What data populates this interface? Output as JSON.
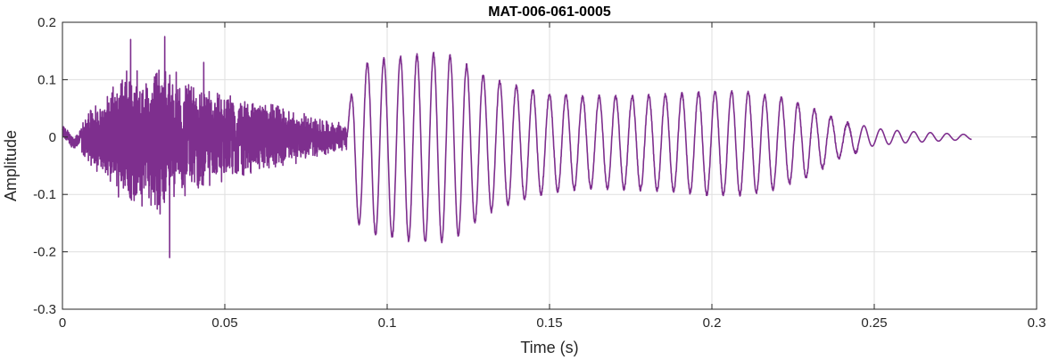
{
  "chart_data": {
    "type": "line",
    "title": "MAT-006-061-0005",
    "xlabel": "Time (s)",
    "ylabel": "Amplitude",
    "xlim": [
      0,
      0.3
    ],
    "ylim": [
      -0.3,
      0.2
    ],
    "xticks": [
      0,
      0.05,
      0.1,
      0.15,
      0.2,
      0.25,
      0.3
    ],
    "xtick_labels": [
      "0",
      "0.05",
      "0.1",
      "0.15",
      "0.2",
      "0.25",
      "0.3"
    ],
    "yticks": [
      -0.3,
      -0.2,
      -0.1,
      0,
      0.1,
      0.2
    ],
    "ytick_labels": [
      "-0.3",
      "-0.2",
      "-0.1",
      "0",
      "0.1",
      "0.2"
    ],
    "grid": true,
    "line_color": "#7e2f8e",
    "series": [
      {
        "x_start": 0,
        "x_end": 0.28,
        "noise_envelope": [
          [
            0.0,
            0.02
          ],
          [
            0.003,
            0.04
          ],
          [
            0.006,
            0.03
          ],
          [
            0.01,
            0.06
          ],
          [
            0.015,
            0.09
          ],
          [
            0.02,
            0.13
          ],
          [
            0.025,
            0.11
          ],
          [
            0.03,
            0.14
          ],
          [
            0.035,
            0.12
          ],
          [
            0.04,
            0.1
          ],
          [
            0.05,
            0.08
          ],
          [
            0.06,
            0.07
          ],
          [
            0.07,
            0.05
          ],
          [
            0.08,
            0.035
          ],
          [
            0.087,
            0.025
          ]
        ],
        "noise_peaks": [
          [
            0.021,
            0.17
          ],
          [
            0.0315,
            0.175
          ],
          [
            0.033,
            -0.21
          ],
          [
            0.0245,
            -0.12
          ],
          [
            0.0435,
            0.13
          ]
        ],
        "oscillation_envelope": [
          [
            0.0875,
            0.02
          ],
          [
            0.09,
            0.13
          ],
          [
            0.095,
            0.15
          ],
          [
            0.1,
            0.155
          ],
          [
            0.105,
            0.16
          ],
          [
            0.115,
            0.165
          ],
          [
            0.12,
            0.16
          ],
          [
            0.125,
            0.14
          ],
          [
            0.13,
            0.12
          ],
          [
            0.14,
            0.1
          ],
          [
            0.15,
            0.085
          ],
          [
            0.16,
            0.08
          ],
          [
            0.17,
            0.08
          ],
          [
            0.18,
            0.082
          ],
          [
            0.19,
            0.085
          ],
          [
            0.2,
            0.09
          ],
          [
            0.21,
            0.09
          ],
          [
            0.22,
            0.08
          ],
          [
            0.23,
            0.06
          ],
          [
            0.24,
            0.03
          ],
          [
            0.25,
            0.015
          ],
          [
            0.26,
            0.01
          ],
          [
            0.27,
            0.007
          ],
          [
            0.28,
            0.004
          ]
        ],
        "oscillation_period": 0.0051
      }
    ]
  }
}
